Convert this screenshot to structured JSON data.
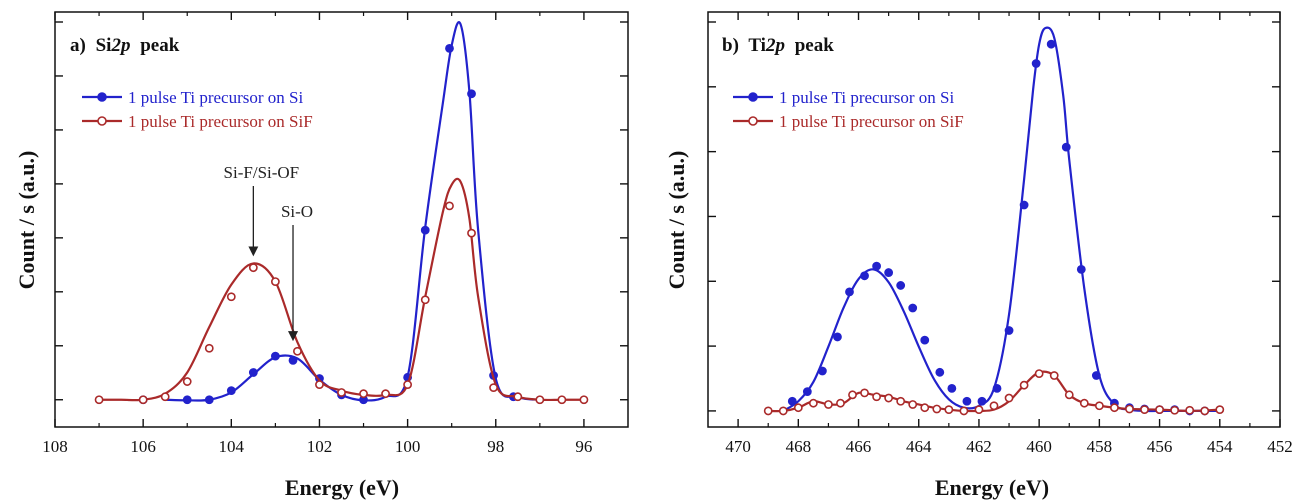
{
  "colors": {
    "blue": "#2222cc",
    "red": "#aa2a2a",
    "axis": "#111111"
  },
  "chart_data": [
    {
      "type": "line",
      "panel_label": "a)",
      "panel_element": "Si",
      "panel_subscript_italic": "2p",
      "panel_suffix": "peak",
      "xlabel": "Energy (eV)",
      "ylabel": "Count / s (a.u.)",
      "xlim": [
        108,
        95
      ],
      "ylim": [
        -0.45,
        6.4
      ],
      "x_axis_reversed": true,
      "y_tick_labels_shown": false,
      "xticks": [
        108,
        106,
        104,
        102,
        100,
        98,
        96
      ],
      "legend_position": "top-left",
      "series": [
        {
          "name": "1 pulse Ti precursor on Si",
          "marker": "filled-circle",
          "color_key": "blue",
          "x": [
            105.5,
            105.0,
            104.5,
            104.0,
            103.5,
            103.0,
            102.5,
            102.0,
            101.5,
            101.0,
            100.5,
            100.0,
            99.6,
            99.2,
            99.0,
            98.8,
            98.6,
            98.4,
            98.0,
            97.5,
            97.0
          ],
          "y": [
            0.0,
            -0.01,
            0.0,
            0.12,
            0.42,
            0.7,
            0.68,
            0.33,
            0.08,
            -0.01,
            0.05,
            0.38,
            2.85,
            4.9,
            5.85,
            6.2,
            5.1,
            2.8,
            0.35,
            0.05,
            0.0
          ],
          "points": [
            [
              106.0,
              0.0
            ],
            [
              105.0,
              0.0
            ],
            [
              104.5,
              0.0
            ],
            [
              104.0,
              0.15
            ],
            [
              103.5,
              0.45
            ],
            [
              103.0,
              0.72
            ],
            [
              102.6,
              0.65
            ],
            [
              102.0,
              0.35
            ],
            [
              101.5,
              0.08
            ],
            [
              101.0,
              0.0
            ],
            [
              100.0,
              0.37
            ],
            [
              99.6,
              2.8
            ],
            [
              99.05,
              5.8
            ],
            [
              98.55,
              5.05
            ],
            [
              98.05,
              0.4
            ],
            [
              97.6,
              0.05
            ]
          ]
        },
        {
          "name": "1 pulse Ti precursor on SiF",
          "marker": "open-circle",
          "color_key": "red",
          "x": [
            107.0,
            106.5,
            106.0,
            105.5,
            105.0,
            104.5,
            104.0,
            103.5,
            103.0,
            102.5,
            102.0,
            101.5,
            101.0,
            100.5,
            100.0,
            99.6,
            99.2,
            99.0,
            98.8,
            98.6,
            98.4,
            98.0,
            97.5,
            97.0,
            96.5,
            96.0
          ],
          "y": [
            0.0,
            0.0,
            0.0,
            0.1,
            0.45,
            1.2,
            1.9,
            2.25,
            1.95,
            0.95,
            0.32,
            0.15,
            0.08,
            0.08,
            0.25,
            1.7,
            3.1,
            3.55,
            3.6,
            3.0,
            1.7,
            0.25,
            0.05,
            0.0,
            0.0,
            0.0
          ],
          "points": [
            [
              107.0,
              0.0
            ],
            [
              106.0,
              0.0
            ],
            [
              105.5,
              0.05
            ],
            [
              105.0,
              0.3
            ],
            [
              104.5,
              0.85
            ],
            [
              104.0,
              1.7
            ],
            [
              103.5,
              2.18
            ],
            [
              103.0,
              1.95
            ],
            [
              102.5,
              0.8
            ],
            [
              102.0,
              0.25
            ],
            [
              101.5,
              0.12
            ],
            [
              101.0,
              0.1
            ],
            [
              100.5,
              0.1
            ],
            [
              100.0,
              0.25
            ],
            [
              99.6,
              1.65
            ],
            [
              99.05,
              3.2
            ],
            [
              98.55,
              2.75
            ],
            [
              98.05,
              0.2
            ],
            [
              97.5,
              0.05
            ],
            [
              97.0,
              0.0
            ],
            [
              96.5,
              0.0
            ],
            [
              96.0,
              0.0
            ]
          ]
        }
      ],
      "annotations": [
        {
          "text": "Si-F/Si-OF",
          "arrow_to": [
            103.5,
            2.35
          ]
        },
        {
          "text": "Si-O",
          "arrow_to": [
            102.6,
            0.95
          ]
        }
      ]
    },
    {
      "type": "line",
      "panel_label": "b)",
      "panel_element": "Ti",
      "panel_subscript_italic": "2p",
      "panel_suffix": "peak",
      "xlabel": "Energy (eV)",
      "ylabel": "Count / s (a.u.)",
      "xlim": [
        471,
        452
      ],
      "ylim": [
        -0.25,
        6.2
      ],
      "x_axis_reversed": true,
      "y_tick_labels_shown": false,
      "xticks": [
        470,
        468,
        466,
        464,
        462,
        460,
        458,
        456,
        454,
        452
      ],
      "legend_position": "top-left",
      "series": [
        {
          "name": "1 pulse Ti precursor on Si",
          "marker": "filled-circle",
          "color_key": "blue",
          "x": [
            468.5,
            468.0,
            467.5,
            467.0,
            466.5,
            466.0,
            465.5,
            465.0,
            464.5,
            464.0,
            463.5,
            463.0,
            462.5,
            462.0,
            461.5,
            461.0,
            460.5,
            460.2,
            460.0,
            459.8,
            459.5,
            459.2,
            459.0,
            458.5,
            458.0,
            457.5,
            457.0,
            456.5,
            456.0,
            455.0,
            454.0
          ],
          "y": [
            0.0,
            0.15,
            0.45,
            1.0,
            1.6,
            2.05,
            2.2,
            2.0,
            1.55,
            1.0,
            0.5,
            0.18,
            0.05,
            0.08,
            0.35,
            1.5,
            3.6,
            5.0,
            5.7,
            5.95,
            5.8,
            4.9,
            3.9,
            1.9,
            0.55,
            0.1,
            0.02,
            0.0,
            0.0,
            0.0,
            0.0
          ],
          "points": [
            [
              468.2,
              0.15
            ],
            [
              467.7,
              0.3
            ],
            [
              467.2,
              0.62
            ],
            [
              466.7,
              1.15
            ],
            [
              466.3,
              1.85
            ],
            [
              465.8,
              2.1
            ],
            [
              465.4,
              2.25
            ],
            [
              465.0,
              2.15
            ],
            [
              464.6,
              1.95
            ],
            [
              464.2,
              1.6
            ],
            [
              463.8,
              1.1
            ],
            [
              463.3,
              0.6
            ],
            [
              462.9,
              0.35
            ],
            [
              462.4,
              0.15
            ],
            [
              461.9,
              0.15
            ],
            [
              461.4,
              0.35
            ],
            [
              461.0,
              1.25
            ],
            [
              460.5,
              3.2
            ],
            [
              460.1,
              5.4
            ],
            [
              459.6,
              5.7
            ],
            [
              459.1,
              4.1
            ],
            [
              458.6,
              2.2
            ],
            [
              458.1,
              0.55
            ],
            [
              457.5,
              0.12
            ],
            [
              457.0,
              0.05
            ],
            [
              456.5,
              0.03
            ],
            [
              456.0,
              0.02
            ],
            [
              455.5,
              0.02
            ],
            [
              455.0,
              0.0
            ],
            [
              454.5,
              0.0
            ]
          ]
        },
        {
          "name": "1 pulse Ti precursor on SiF",
          "marker": "open-circle",
          "color_key": "red",
          "x": [
            469.0,
            468.5,
            468.0,
            467.5,
            467.0,
            466.5,
            466.0,
            465.5,
            465.0,
            464.5,
            464.0,
            463.5,
            463.0,
            462.5,
            462.0,
            461.5,
            461.0,
            460.5,
            460.0,
            459.5,
            459.0,
            458.5,
            458.0,
            457.5,
            457.0,
            456.0,
            455.0,
            454.0
          ],
          "y": [
            0.0,
            0.0,
            0.05,
            0.15,
            0.1,
            0.12,
            0.28,
            0.25,
            0.22,
            0.15,
            0.1,
            0.05,
            0.02,
            0.0,
            0.0,
            0.02,
            0.15,
            0.4,
            0.6,
            0.55,
            0.25,
            0.12,
            0.08,
            0.05,
            0.03,
            0.02,
            0.0,
            0.02
          ],
          "points": [
            [
              469.0,
              0.0
            ],
            [
              468.5,
              0.0
            ],
            [
              468.0,
              0.05
            ],
            [
              467.5,
              0.12
            ],
            [
              467.0,
              0.1
            ],
            [
              466.6,
              0.12
            ],
            [
              466.2,
              0.25
            ],
            [
              465.8,
              0.28
            ],
            [
              465.4,
              0.22
            ],
            [
              465.0,
              0.2
            ],
            [
              464.6,
              0.15
            ],
            [
              464.2,
              0.1
            ],
            [
              463.8,
              0.05
            ],
            [
              463.4,
              0.03
            ],
            [
              463.0,
              0.02
            ],
            [
              462.5,
              0.0
            ],
            [
              462.0,
              0.02
            ],
            [
              461.5,
              0.08
            ],
            [
              461.0,
              0.2
            ],
            [
              460.5,
              0.4
            ],
            [
              460.0,
              0.58
            ],
            [
              459.5,
              0.55
            ],
            [
              459.0,
              0.25
            ],
            [
              458.5,
              0.12
            ],
            [
              458.0,
              0.08
            ],
            [
              457.5,
              0.05
            ],
            [
              457.0,
              0.03
            ],
            [
              456.5,
              0.02
            ],
            [
              456.0,
              0.02
            ],
            [
              455.5,
              0.01
            ],
            [
              455.0,
              0.01
            ],
            [
              454.5,
              0.0
            ],
            [
              454.0,
              0.02
            ]
          ]
        }
      ],
      "annotations": []
    }
  ]
}
